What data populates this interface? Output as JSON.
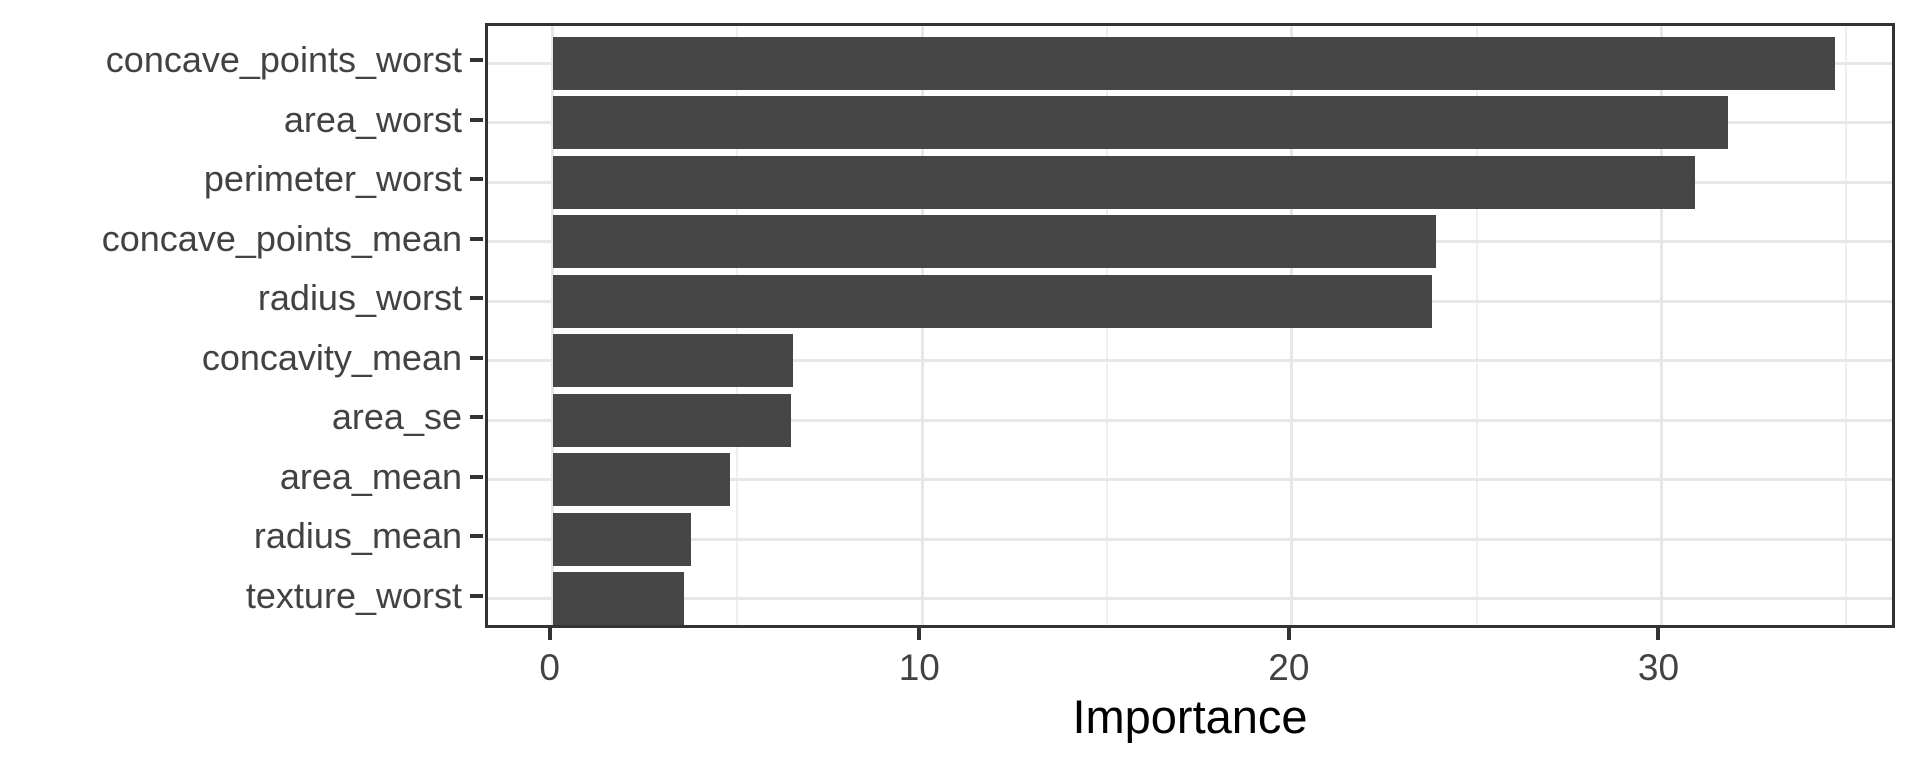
{
  "chart_data": {
    "type": "bar",
    "orientation": "horizontal",
    "title": "",
    "xlabel": "Importance",
    "ylabel": "",
    "categories": [
      "concave_points_worst",
      "area_worst",
      "perimeter_worst",
      "concave_points_mean",
      "radius_worst",
      "concavity_mean",
      "area_se",
      "area_mean",
      "radius_mean",
      "texture_worst"
    ],
    "values": [
      34.7,
      31.8,
      30.9,
      23.9,
      23.8,
      6.5,
      6.45,
      4.8,
      3.75,
      3.55
    ],
    "x_tick_labels": [
      "0",
      "10",
      "20",
      "30"
    ],
    "x_major_ticks": [
      0,
      10,
      20,
      30
    ],
    "x_minor_ticks": [
      5,
      15,
      25,
      35
    ],
    "xlim": [
      -1.75,
      36.4
    ],
    "grid": "major and minor vertical, major horizontal per category",
    "legend": "none",
    "colors": {
      "bar": "#464646",
      "grid_major": "#e7e7e7",
      "grid_minor": "#efefef",
      "panel_border": "#333333",
      "tick_mark": "#333333",
      "axis_text": "#424242",
      "axis_title": "#000000",
      "background": "#ffffff"
    }
  }
}
